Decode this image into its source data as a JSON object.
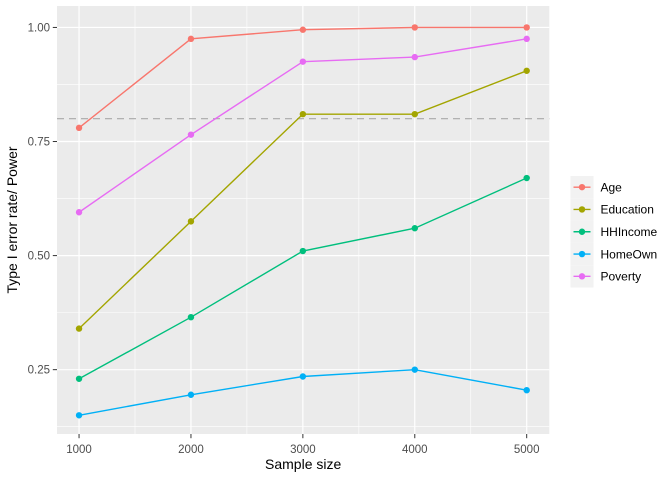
{
  "chart_data": {
    "type": "line",
    "title": "",
    "xlabel": "Sample size",
    "ylabel": "Type I error rate/ Power",
    "x": [
      1000,
      2000,
      3000,
      4000,
      5000
    ],
    "x_tick_labels": [
      "1000",
      "2000",
      "3000",
      "4000",
      "5000"
    ],
    "x_minor_ticks": [
      1500,
      2500,
      3500,
      4500
    ],
    "y_ticks": [
      0.25,
      0.5,
      0.75,
      1.0
    ],
    "y_tick_labels": [
      "0.25",
      "0.50",
      "0.75",
      "1.00"
    ],
    "y_minor_ticks": [
      0.125,
      0.375,
      0.625,
      0.875
    ],
    "xlim": [
      803,
      5202
    ],
    "ylim": [
      0.109,
      1.047
    ],
    "grid": true,
    "legend_position": "right",
    "legend_title": "",
    "reference_line": {
      "y": 0.8,
      "style": "dashed",
      "color": "#A9A9A9"
    },
    "series": [
      {
        "name": "Age",
        "color": "#F8766D",
        "values": [
          0.78,
          0.975,
          0.995,
          1.0,
          1.0
        ]
      },
      {
        "name": "Education",
        "color": "#A3A500",
        "values": [
          0.34,
          0.575,
          0.81,
          0.81,
          0.905
        ]
      },
      {
        "name": "HHIncome",
        "color": "#00BF7D",
        "values": [
          0.23,
          0.365,
          0.51,
          0.56,
          0.67
        ]
      },
      {
        "name": "HomeOwn",
        "color": "#00B0F6",
        "values": [
          0.15,
          0.195,
          0.235,
          0.25,
          0.205
        ]
      },
      {
        "name": "Poverty",
        "color": "#E76BF3",
        "values": [
          0.595,
          0.765,
          0.925,
          0.935,
          0.975
        ]
      }
    ],
    "colors": {
      "panel_bg": "#EBEBEB",
      "outer_bg": "#FFFFFF",
      "gridline": "#FFFFFF",
      "legend_key_bg": "#F2F2F2",
      "tick_mark": "#333333",
      "tick_label": "#4D4D4D",
      "axis_title": "#000000"
    }
  }
}
